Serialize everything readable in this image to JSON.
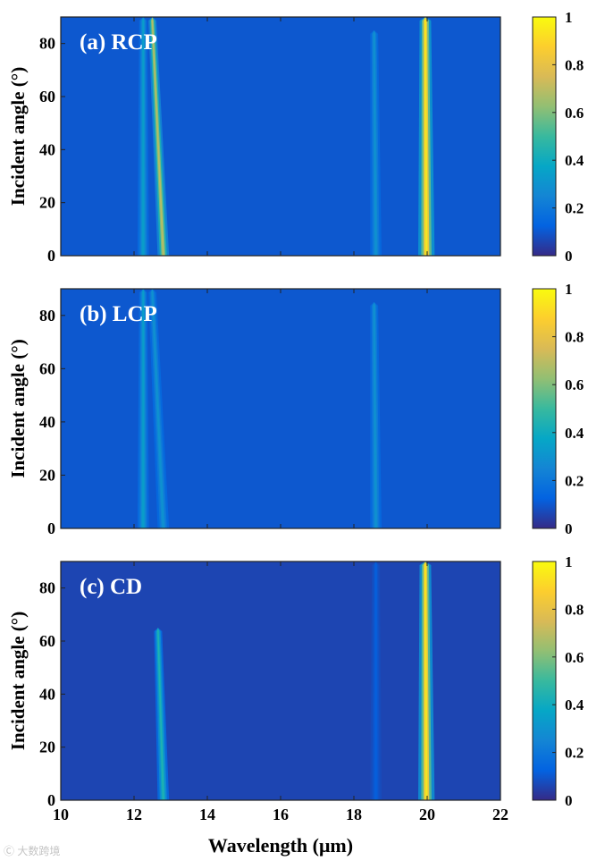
{
  "chart_data": [
    {
      "type": "heatmap",
      "panel_label": "(a) RCP",
      "ylabel": "Incident angle (°)",
      "xlim": [
        10,
        22
      ],
      "ylim": [
        0,
        90
      ],
      "colorbar": {
        "range": [
          0,
          1
        ],
        "ticks": [
          "1",
          "0.8",
          "0.6",
          "0.4",
          "0.2",
          "0"
        ],
        "colormap": "parula"
      },
      "background_value": 0.1,
      "bands": [
        {
          "x_at_0deg": 12.25,
          "x_at_90deg": 12.25,
          "width": 0.07,
          "intensity": 0.35,
          "max_angle": 90
        },
        {
          "x_at_0deg": 12.8,
          "x_at_90deg": 12.5,
          "width": 0.08,
          "intensity": 0.7,
          "max_angle": 90
        },
        {
          "x_at_0deg": 18.6,
          "x_at_90deg": 18.55,
          "width": 0.08,
          "intensity": 0.3,
          "max_angle": 85
        },
        {
          "x_at_0deg": 19.98,
          "x_at_90deg": 19.95,
          "width": 0.14,
          "intensity": 0.95,
          "max_angle": 90
        }
      ]
    },
    {
      "type": "heatmap",
      "panel_label": "(b) LCP",
      "ylabel": "Incident angle (°)",
      "xlim": [
        10,
        22
      ],
      "ylim": [
        0,
        90
      ],
      "colorbar": {
        "range": [
          0,
          1
        ],
        "ticks": [
          "1",
          "0.8",
          "0.6",
          "0.4",
          "0.2",
          "0"
        ],
        "colormap": "parula"
      },
      "background_value": 0.1,
      "bands": [
        {
          "x_at_0deg": 12.25,
          "x_at_90deg": 12.25,
          "width": 0.07,
          "intensity": 0.35,
          "max_angle": 90
        },
        {
          "x_at_0deg": 12.8,
          "x_at_90deg": 12.5,
          "width": 0.08,
          "intensity": 0.3,
          "max_angle": 90
        },
        {
          "x_at_0deg": 18.6,
          "x_at_90deg": 18.55,
          "width": 0.08,
          "intensity": 0.3,
          "max_angle": 85
        }
      ]
    },
    {
      "type": "heatmap",
      "panel_label": "(c) CD",
      "ylabel": "Incident angle (°)",
      "xlabel": "Wavelength (μm)",
      "xlim": [
        10,
        22
      ],
      "ylim": [
        0,
        90
      ],
      "xticks": [
        "10",
        "12",
        "14",
        "16",
        "18",
        "20",
        "22"
      ],
      "yticks": [
        "0",
        "20",
        "40",
        "60",
        "80"
      ],
      "colorbar": {
        "range": [
          0,
          1
        ],
        "ticks": [
          "1",
          "0.8",
          "0.6",
          "0.4",
          "0.2",
          "0"
        ],
        "colormap": "parula"
      },
      "background_value": 0.06,
      "bands": [
        {
          "x_at_0deg": 12.8,
          "x_at_90deg": 12.6,
          "width": 0.07,
          "intensity": 0.45,
          "max_angle": 65
        },
        {
          "x_at_0deg": 18.6,
          "x_at_90deg": 18.6,
          "width": 0.05,
          "intensity": 0.12,
          "max_angle": 90
        },
        {
          "x_at_0deg": 19.98,
          "x_at_90deg": 19.95,
          "width": 0.14,
          "intensity": 0.95,
          "max_angle": 90
        }
      ]
    }
  ],
  "watermark": "大数跨境",
  "colors": {
    "colormap_low": "#352a87",
    "colormap_high": "#f9fb0e",
    "panel_label": "#ffffff"
  }
}
